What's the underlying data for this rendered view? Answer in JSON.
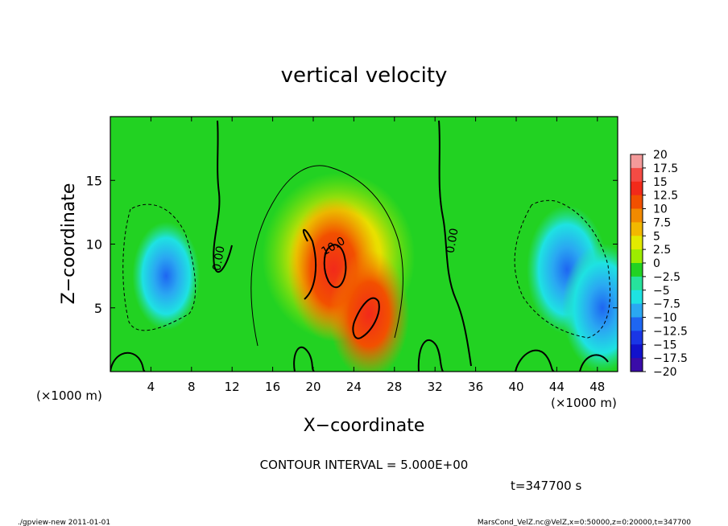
{
  "chart_data": {
    "type": "heatmap",
    "title": "vertical velocity",
    "xlabel": "X−coordinate",
    "ylabel": "Z−coordinate",
    "x_unit": "(×1000 m)",
    "y_unit": "(×1000 m)",
    "xlim": [
      0,
      50
    ],
    "ylim": [
      0,
      20
    ],
    "x_ticks": [
      "4",
      "8",
      "12",
      "16",
      "20",
      "24",
      "28",
      "32",
      "36",
      "40",
      "44",
      "48"
    ],
    "x_tick_values": [
      4,
      8,
      12,
      16,
      20,
      24,
      28,
      32,
      36,
      40,
      44,
      48
    ],
    "y_ticks": [
      "5",
      "10",
      "15"
    ],
    "y_tick_values": [
      5,
      10,
      15
    ],
    "colorbar": {
      "labels": [
        "20",
        "17.5",
        "15",
        "12.5",
        "10",
        "7.5",
        "5",
        "2.5",
        "0",
        "−2.5",
        "−5",
        "−7.5",
        "−10",
        "−12.5",
        "−15",
        "−17.5",
        "−20"
      ],
      "colors": [
        "#f49a9a",
        "#f44b44",
        "#f22a1a",
        "#f25000",
        "#f28a00",
        "#f2b800",
        "#e2ea00",
        "#9cec00",
        "#22d222",
        "#26e29c",
        "#1ee2e2",
        "#2aa8f2",
        "#1e66f2",
        "#1a36e6",
        "#1212cc",
        "#3a0ca8"
      ]
    },
    "contour_labels": [
      "0.00",
      "10.0",
      "0.00"
    ],
    "contour_interval": "CONTOUR INTERVAL = 5.000E+00",
    "time_label": "t=347700 s",
    "features": [
      {
        "x": 22,
        "z": 8,
        "w": 12,
        "kind": "updraft-core"
      },
      {
        "x": 25.5,
        "z": 4.5,
        "w": 10,
        "kind": "updraft"
      },
      {
        "x": 5.5,
        "z": 7.5,
        "w": -7.5,
        "kind": "downdraft"
      },
      {
        "x": 45,
        "z": 8,
        "w": -10,
        "kind": "downdraft"
      },
      {
        "x": 48.5,
        "z": 5,
        "w": -10,
        "kind": "downdraft"
      }
    ]
  },
  "footer": {
    "left": "./gpview-new   2011-01-01",
    "right": "MarsCond_VelZ.nc@VelZ,x=0:50000,z=0:20000,t=347700"
  }
}
